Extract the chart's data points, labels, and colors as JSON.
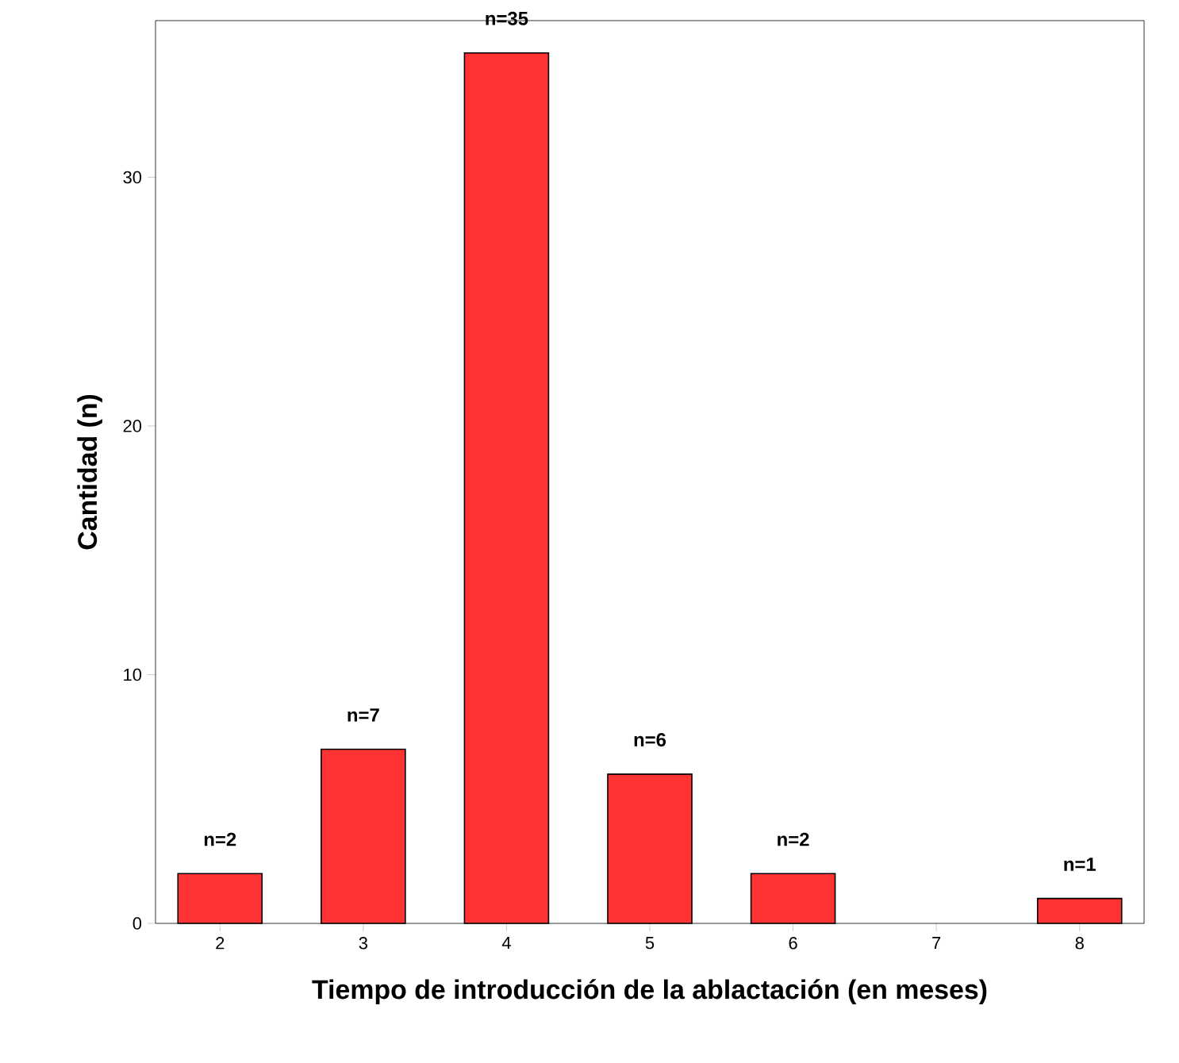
{
  "chart_data": {
    "type": "bar",
    "xlabel": "Tiempo de introducción de la ablactación (en meses)",
    "ylabel": "Cantidad (n)",
    "categories": [
      "2",
      "3",
      "4",
      "5",
      "6",
      "7",
      "8"
    ],
    "values": [
      2,
      7,
      35,
      6,
      2,
      null,
      1
    ],
    "value_labels": [
      "n=2",
      "n=7",
      "n=35",
      "n=6",
      "n=2",
      null,
      "n=1"
    ],
    "color": "#ff3333",
    "ylim": [
      0,
      36.3
    ],
    "yticks": [
      0,
      10,
      20,
      30
    ],
    "grid": false
  }
}
